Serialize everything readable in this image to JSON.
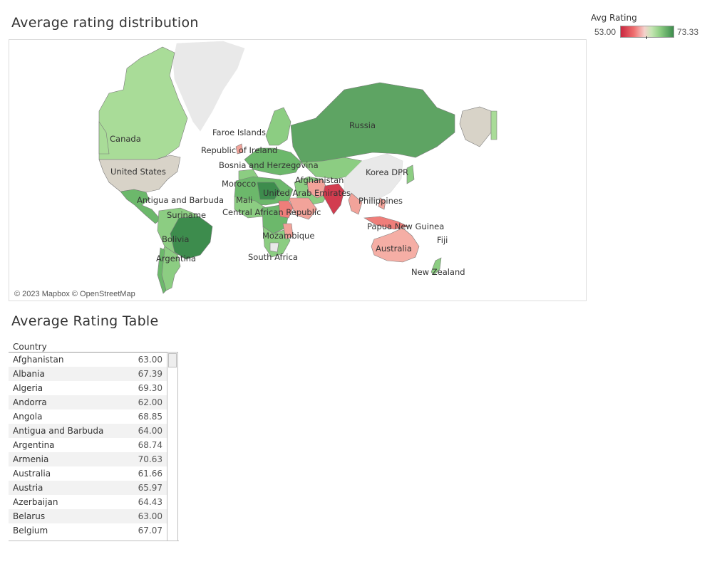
{
  "map_title": "Average rating  distribution",
  "table_title": "Average Rating Table",
  "legend": {
    "title": "Avg Rating",
    "min_label": "53.00",
    "max_label": "73.33",
    "colors": [
      "#c9273f",
      "#ef6f6f",
      "#f5d1cc",
      "#c7e6b5",
      "#8ccd82",
      "#3d8c4d"
    ]
  },
  "map": {
    "attribution": "© 2023 Mapbox © OpenStreetMap",
    "no_data_color": "#d8d3c8",
    "missing_color": "#e9e9e9",
    "labels": [
      "Russia",
      "Canada",
      "Faroe Islands",
      "Republic of Ireland",
      "United States",
      "Bosnia and Herzegovina",
      "Korea DPR",
      "Afghanistan",
      "Morocco",
      "United Arab Emirates",
      "Mali",
      "Antigua and Barbuda",
      "Philippines",
      "Central African Republic",
      "Suriname",
      "Papua New Guinea",
      "Mozambique",
      "Bolivia",
      "Fiji",
      "Australia",
      "Argentina",
      "South Africa",
      "New Zealand"
    ]
  },
  "table": {
    "column_header": "Country",
    "rows": [
      {
        "country": "Afghanistan",
        "rating": "63.00"
      },
      {
        "country": "Albania",
        "rating": "67.39"
      },
      {
        "country": "Algeria",
        "rating": "69.30"
      },
      {
        "country": "Andorra",
        "rating": "62.00"
      },
      {
        "country": "Angola",
        "rating": "68.85"
      },
      {
        "country": "Antigua and Barbuda",
        "rating": "64.00"
      },
      {
        "country": "Argentina",
        "rating": "68.74"
      },
      {
        "country": "Armenia",
        "rating": "70.63"
      },
      {
        "country": "Australia",
        "rating": "61.66"
      },
      {
        "country": "Austria",
        "rating": "65.97"
      },
      {
        "country": "Azerbaijan",
        "rating": "64.43"
      },
      {
        "country": "Belarus",
        "rating": "63.00"
      },
      {
        "country": "Belgium",
        "rating": "67.07"
      }
    ]
  }
}
